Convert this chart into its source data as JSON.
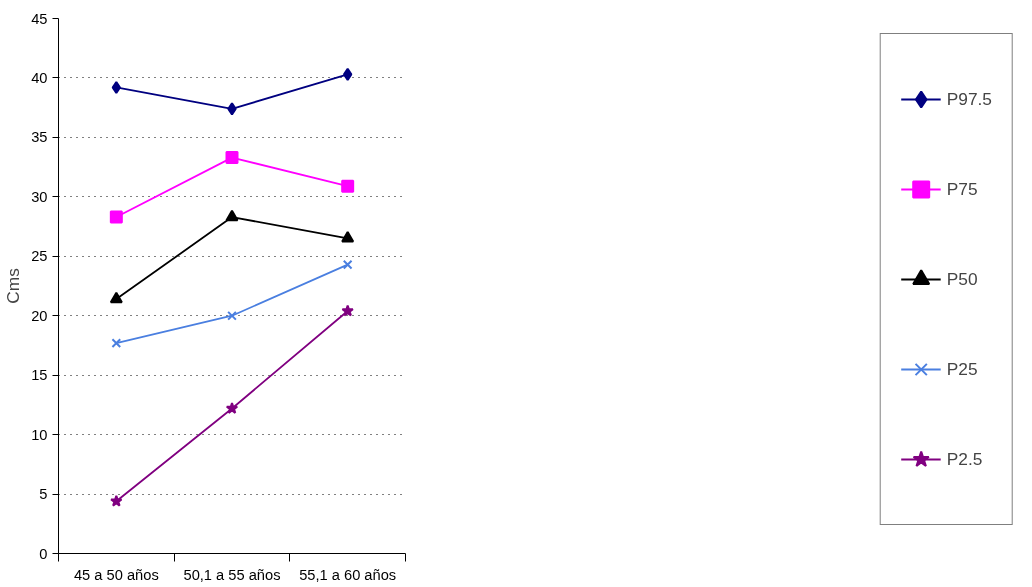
{
  "chart_data": {
    "type": "line",
    "ylabel": "Cms",
    "categories": [
      "45 a 50 años",
      "50,1 a 55 años",
      "55,1 a 60 años"
    ],
    "series": [
      {
        "name": "P97.5",
        "color": "#000080",
        "marker": "diamond",
        "values": [
          39.2,
          37.4,
          40.3
        ]
      },
      {
        "name": "P75",
        "color": "#ff00ff",
        "marker": "square",
        "values": [
          28.3,
          33.3,
          30.9
        ]
      },
      {
        "name": "P50",
        "color": "#000000",
        "marker": "triangle",
        "values": [
          21.4,
          28.3,
          26.5
        ]
      },
      {
        "name": "P25",
        "color": "#4a7fe0",
        "marker": "cross",
        "values": [
          17.7,
          20.0,
          24.3
        ]
      },
      {
        "name": "P2.5",
        "color": "#800080",
        "marker": "star",
        "values": [
          4.4,
          12.2,
          20.4
        ]
      }
    ],
    "ylim": [
      0,
      45
    ],
    "yticks": [
      0,
      5,
      10,
      15,
      20,
      25,
      30,
      35,
      40,
      45
    ],
    "grid": "y",
    "legend": "right",
    "line_style": "solid"
  }
}
